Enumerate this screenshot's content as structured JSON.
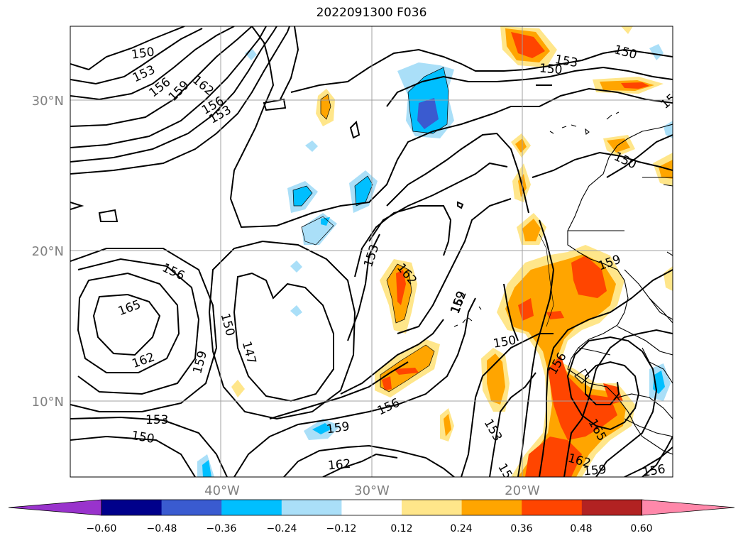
{
  "title": "2022091300 F036",
  "map": {
    "lat_labels": [
      "30°N",
      "20°N",
      "10°N"
    ],
    "lon_labels": [
      "40°W",
      "30°W",
      "20°W"
    ]
  },
  "colorbar": {
    "tick_labels": [
      "−0.60",
      "−0.48",
      "−0.36",
      "−0.24",
      "−0.12",
      "0.12",
      "0.24",
      "0.36",
      "0.48",
      "0.60"
    ],
    "colors": [
      "#9933cc",
      "#00008b",
      "#3a5bd0",
      "#00bfff",
      "#aadff8",
      "#ffffff",
      "#ffe68a",
      "#ffa500",
      "#ff4500",
      "#b22222",
      "#ff88aa"
    ]
  },
  "contour_labels": [
    {
      "text": "150"
    },
    {
      "text": "153"
    },
    {
      "text": "156"
    },
    {
      "text": "159"
    },
    {
      "text": "162"
    },
    {
      "text": "156"
    },
    {
      "text": "153"
    },
    {
      "text": "150"
    },
    {
      "text": "153"
    },
    {
      "text": "150"
    },
    {
      "text": "150"
    },
    {
      "text": "153"
    },
    {
      "text": "156"
    },
    {
      "text": "159"
    },
    {
      "text": "162"
    },
    {
      "text": "165"
    },
    {
      "text": "162"
    },
    {
      "text": "159"
    },
    {
      "text": "150"
    },
    {
      "text": "147"
    },
    {
      "text": "153"
    },
    {
      "text": "150"
    },
    {
      "text": "153"
    },
    {
      "text": "162"
    },
    {
      "text": "159"
    },
    {
      "text": "150"
    },
    {
      "text": "156"
    },
    {
      "text": "159"
    },
    {
      "text": "162"
    },
    {
      "text": "153"
    },
    {
      "text": "156"
    },
    {
      "text": "165"
    },
    {
      "text": "162"
    },
    {
      "text": "159"
    },
    {
      "text": "156"
    },
    {
      "text": "153"
    }
  ]
}
